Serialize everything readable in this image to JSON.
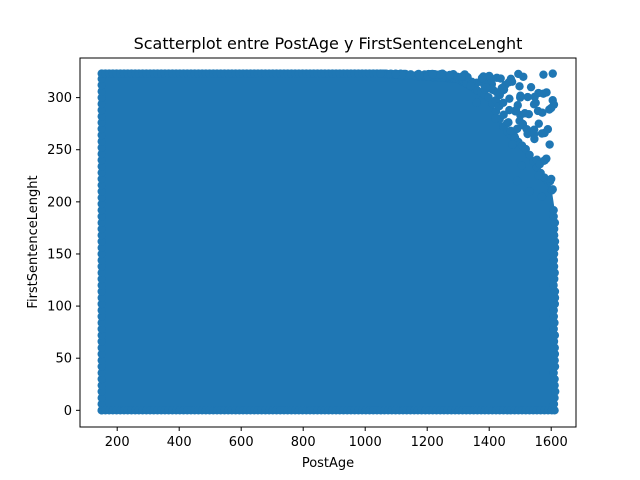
{
  "chart_data": {
    "type": "scatter",
    "title": "Scatterplot entre PostAge y FirstSentenceLenght",
    "xlabel": "PostAge",
    "ylabel": "FirstSentenceLenght",
    "xlim": [
      80,
      1680
    ],
    "ylim": [
      -16,
      338
    ],
    "xticks": [
      200,
      400,
      600,
      800,
      1000,
      1200,
      1400,
      1600
    ],
    "yticks": [
      0,
      50,
      100,
      150,
      200,
      250,
      300
    ],
    "grid": false,
    "legend": "none",
    "marker_color": "#1f77b4",
    "series": [
      {
        "density_description": "dense uniform cloud covering PostAge 150-1610, FirstSentenceLenght 0-323; sparser toward the upper-right corner",
        "dense_region": {
          "x": [
            150,
            1610
          ],
          "y": [
            0,
            323
          ]
        },
        "sparse_region_edge": [
          [
            1050,
            323
          ],
          [
            1300,
            318
          ],
          [
            1400,
            300
          ],
          [
            1450,
            270
          ],
          [
            1520,
            250
          ],
          [
            1560,
            230
          ],
          [
            1600,
            215
          ],
          [
            1610,
            195
          ]
        ],
        "outliers": [
          [
            1510,
            320
          ],
          [
            1575,
            322
          ],
          [
            1605,
            323
          ],
          [
            1470,
            318
          ],
          [
            1535,
            310
          ],
          [
            1585,
            305
          ],
          [
            1550,
            295
          ],
          [
            1500,
            300
          ],
          [
            1600,
            290
          ],
          [
            1560,
            275
          ],
          [
            1515,
            285
          ],
          [
            1490,
            270
          ],
          [
            1545,
            265
          ],
          [
            1595,
            255
          ],
          [
            1475,
            255
          ],
          [
            1530,
            245
          ],
          [
            1580,
            240
          ],
          [
            1505,
            235
          ],
          [
            1560,
            225
          ],
          [
            1600,
            222
          ],
          [
            1490,
            220
          ],
          [
            1530,
            210
          ],
          [
            1570,
            205
          ],
          [
            1605,
            212
          ],
          [
            1425,
            305
          ],
          [
            1445,
            295
          ],
          [
            1390,
            310
          ],
          [
            1360,
            295
          ],
          [
            1420,
            280
          ],
          [
            1465,
            288
          ]
        ]
      }
    ]
  }
}
